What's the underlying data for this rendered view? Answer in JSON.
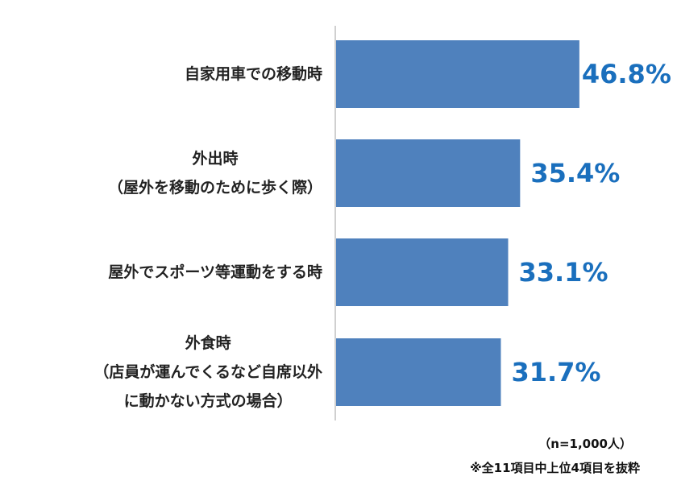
{
  "chart_data": {
    "type": "bar",
    "orientation": "horizontal",
    "categories": [
      [
        "自家用車での移動時"
      ],
      [
        "外出時",
        "（屋外を移動のために歩く際）"
      ],
      [
        "屋外でスポーツ等運動をする時"
      ],
      [
        "外食時",
        "（店員が運んでくるなど自席以外",
        "に動かない方式の場合）"
      ]
    ],
    "values": [
      46.8,
      35.4,
      33.1,
      31.7
    ],
    "value_labels": [
      "46.8%",
      "35.4%",
      "33.1%",
      "31.7%"
    ],
    "xlim": [
      0,
      100
    ],
    "bar_color": "#4f81bd",
    "value_label_color": "#1a6fbd",
    "axis_color": "#d0d0d0",
    "grid": false,
    "legend": "none"
  },
  "notes": {
    "sample": "（n=1,000人）",
    "source": "※全11項目中上位4項目を抜粋"
  }
}
